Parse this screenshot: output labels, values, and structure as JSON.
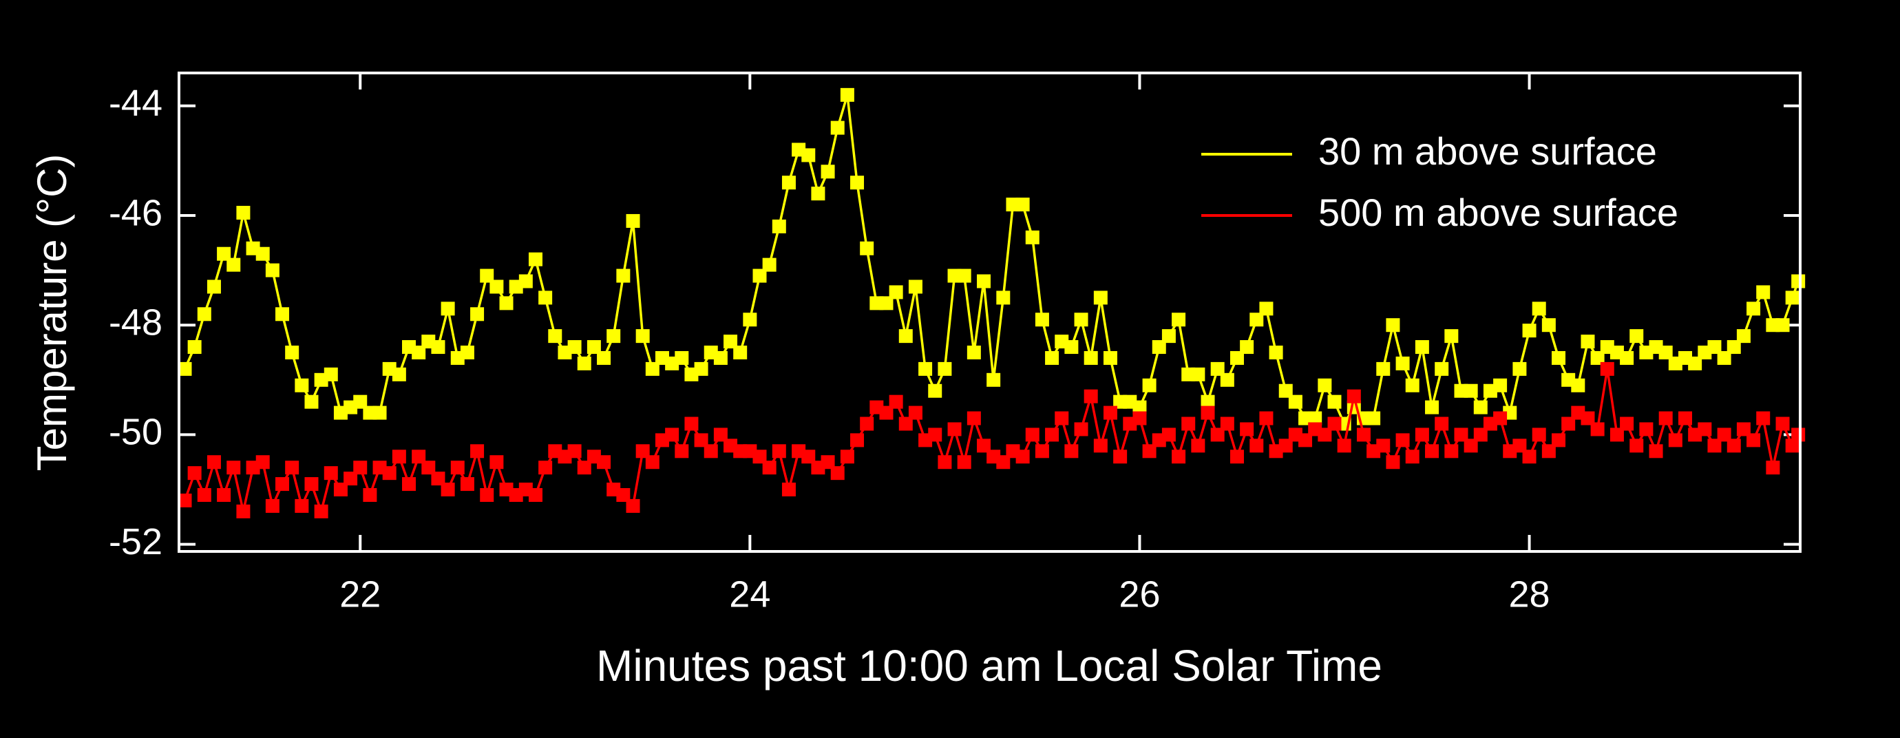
{
  "chart_data": {
    "type": "line",
    "xlabel": "Minutes past 10:00 am Local Solar Time",
    "ylabel": "Temperature (°C)",
    "xlim": [
      21.07,
      29.39
    ],
    "ylim": [
      -52.13,
      -43.4
    ],
    "xticks": [
      22,
      24,
      26,
      28
    ],
    "yticks": [
      -52,
      -50,
      -48,
      -46,
      -44
    ],
    "legend": "upper right",
    "markers": true,
    "x": [
      21.1,
      21.15,
      21.2,
      21.25,
      21.3,
      21.35,
      21.4,
      21.45,
      21.5,
      21.55,
      21.6,
      21.65,
      21.7,
      21.75,
      21.8,
      21.85,
      21.9,
      21.95,
      22.0,
      22.05,
      22.1,
      22.15,
      22.2,
      22.25,
      22.3,
      22.35,
      22.4,
      22.45,
      22.5,
      22.55,
      22.6,
      22.65,
      22.7,
      22.75,
      22.8,
      22.85,
      22.9,
      22.95,
      23.0,
      23.05,
      23.1,
      23.15,
      23.2,
      23.25,
      23.3,
      23.35,
      23.4,
      23.45,
      23.5,
      23.55,
      23.6,
      23.65,
      23.7,
      23.75,
      23.8,
      23.85,
      23.9,
      23.95,
      24.0,
      24.05,
      24.1,
      24.15,
      24.2,
      24.25,
      24.3,
      24.35,
      24.4,
      24.45,
      24.5,
      24.55,
      24.6,
      24.65,
      24.7,
      24.75,
      24.8,
      24.85,
      24.9,
      24.95,
      25.0,
      25.05,
      25.1,
      25.15,
      25.2,
      25.25,
      25.3,
      25.35,
      25.4,
      25.45,
      25.5,
      25.55,
      25.6,
      25.65,
      25.7,
      25.75,
      25.8,
      25.85,
      25.9,
      25.95,
      26.0,
      26.05,
      26.1,
      26.15,
      26.2,
      26.25,
      26.3,
      26.35,
      26.4,
      26.45,
      26.5,
      26.55,
      26.6,
      26.65,
      26.7,
      26.75,
      26.8,
      26.85,
      26.9,
      26.95,
      27.0,
      27.05,
      27.1,
      27.15,
      27.2,
      27.25,
      27.3,
      27.35,
      27.4,
      27.45,
      27.5,
      27.55,
      27.6,
      27.65,
      27.7,
      27.75,
      27.8,
      27.85,
      27.9,
      27.95,
      28.0,
      28.05,
      28.1,
      28.15,
      28.2,
      28.25,
      28.3,
      28.35,
      28.4,
      28.45,
      28.5,
      28.55,
      28.6,
      28.65,
      28.7,
      28.75,
      28.8,
      28.85,
      28.9,
      28.95,
      29.0,
      29.05,
      29.1,
      29.15,
      29.2,
      29.25,
      29.3,
      29.35,
      29.38
    ],
    "series": [
      {
        "name": "30 m above surface",
        "color": "#ffff00",
        "values": [
          -48.8,
          -48.4,
          -47.8,
          -47.3,
          -46.7,
          -46.9,
          -45.95,
          -46.6,
          -46.7,
          -47.0,
          -47.8,
          -48.5,
          -49.1,
          -49.4,
          -49.0,
          -48.9,
          -49.6,
          -49.5,
          -49.4,
          -49.6,
          -49.6,
          -48.8,
          -48.9,
          -48.4,
          -48.5,
          -48.3,
          -48.4,
          -47.7,
          -48.6,
          -48.5,
          -47.8,
          -47.1,
          -47.3,
          -47.6,
          -47.3,
          -47.2,
          -46.8,
          -47.5,
          -48.2,
          -48.5,
          -48.4,
          -48.7,
          -48.4,
          -48.6,
          -48.2,
          -47.1,
          -46.1,
          -48.2,
          -48.8,
          -48.6,
          -48.7,
          -48.6,
          -48.9,
          -48.8,
          -48.5,
          -48.6,
          -48.3,
          -48.5,
          -47.9,
          -47.1,
          -46.9,
          -46.2,
          -45.4,
          -44.8,
          -44.9,
          -45.6,
          -45.2,
          -44.4,
          -43.8,
          -45.4,
          -46.6,
          -47.6,
          -47.6,
          -47.4,
          -48.2,
          -47.3,
          -48.8,
          -49.2,
          -48.8,
          -47.1,
          -47.1,
          -48.5,
          -47.2,
          -49.0,
          -47.5,
          -45.8,
          -45.8,
          -46.4,
          -47.9,
          -48.6,
          -48.3,
          -48.4,
          -47.9,
          -48.6,
          -47.5,
          -48.6,
          -49.4,
          -49.4,
          -49.5,
          -49.1,
          -48.4,
          -48.2,
          -47.9,
          -48.9,
          -48.9,
          -49.4,
          -48.8,
          -49.0,
          -48.6,
          -48.4,
          -47.9,
          -47.7,
          -48.5,
          -49.2,
          -49.4,
          -49.7,
          -49.7,
          -49.1,
          -49.4,
          -49.8,
          -49.5,
          -49.7,
          -49.7,
          -48.8,
          -48.0,
          -48.7,
          -49.1,
          -48.4,
          -49.5,
          -48.8,
          -48.2,
          -49.2,
          -49.2,
          -49.5,
          -49.2,
          -49.1,
          -49.6,
          -48.8,
          -48.1,
          -47.7,
          -48.0,
          -48.6,
          -49.0,
          -49.1,
          -48.3,
          -48.6,
          -48.4,
          -48.5,
          -48.6,
          -48.2,
          -48.5,
          -48.4,
          -48.5,
          -48.7,
          -48.6,
          -48.7,
          -48.5,
          -48.4,
          -48.6,
          -48.4,
          -48.2,
          -47.7,
          -47.4,
          -48.0,
          -48.0,
          -47.5,
          -47.2
        ]
      },
      {
        "name": "500 m above surface",
        "color": "#ff0000",
        "values": [
          -51.2,
          -50.7,
          -51.1,
          -50.5,
          -51.1,
          -50.6,
          -51.4,
          -50.6,
          -50.5,
          -51.3,
          -50.9,
          -50.6,
          -51.3,
          -50.9,
          -51.4,
          -50.7,
          -51.0,
          -50.8,
          -50.6,
          -51.1,
          -50.6,
          -50.7,
          -50.4,
          -50.9,
          -50.4,
          -50.6,
          -50.8,
          -51.0,
          -50.6,
          -50.9,
          -50.3,
          -51.1,
          -50.5,
          -51.0,
          -51.1,
          -51.0,
          -51.1,
          -50.6,
          -50.3,
          -50.4,
          -50.3,
          -50.6,
          -50.4,
          -50.5,
          -51.0,
          -51.1,
          -51.3,
          -50.3,
          -50.5,
          -50.1,
          -50.0,
          -50.3,
          -49.8,
          -50.1,
          -50.3,
          -50.0,
          -50.2,
          -50.3,
          -50.3,
          -50.4,
          -50.6,
          -50.3,
          -51.0,
          -50.3,
          -50.4,
          -50.6,
          -50.5,
          -50.7,
          -50.4,
          -50.1,
          -49.8,
          -49.5,
          -49.6,
          -49.4,
          -49.8,
          -49.6,
          -50.1,
          -50.0,
          -50.5,
          -49.9,
          -50.5,
          -49.7,
          -50.2,
          -50.4,
          -50.5,
          -50.3,
          -50.4,
          -50.0,
          -50.3,
          -50.0,
          -49.7,
          -50.3,
          -49.9,
          -49.3,
          -50.2,
          -49.6,
          -50.4,
          -49.8,
          -49.7,
          -50.3,
          -50.1,
          -50.0,
          -50.4,
          -49.8,
          -50.2,
          -49.6,
          -50.0,
          -49.8,
          -50.4,
          -49.9,
          -50.2,
          -49.7,
          -50.3,
          -50.2,
          -50.0,
          -50.1,
          -49.9,
          -50.0,
          -49.8,
          -50.2,
          -49.3,
          -50.0,
          -50.3,
          -50.2,
          -50.5,
          -50.1,
          -50.4,
          -50.0,
          -50.3,
          -49.8,
          -50.3,
          -50.0,
          -50.2,
          -50.0,
          -49.8,
          -49.7,
          -50.3,
          -50.2,
          -50.4,
          -50.0,
          -50.3,
          -50.1,
          -49.8,
          -49.6,
          -49.7,
          -49.9,
          -48.8,
          -50.0,
          -49.8,
          -50.2,
          -49.9,
          -50.3,
          -49.7,
          -50.1,
          -49.7,
          -50.0,
          -49.9,
          -50.2,
          -50.0,
          -50.2,
          -49.9,
          -50.1,
          -49.7,
          -50.6,
          -49.8,
          -50.2,
          -50.0
        ]
      }
    ]
  }
}
